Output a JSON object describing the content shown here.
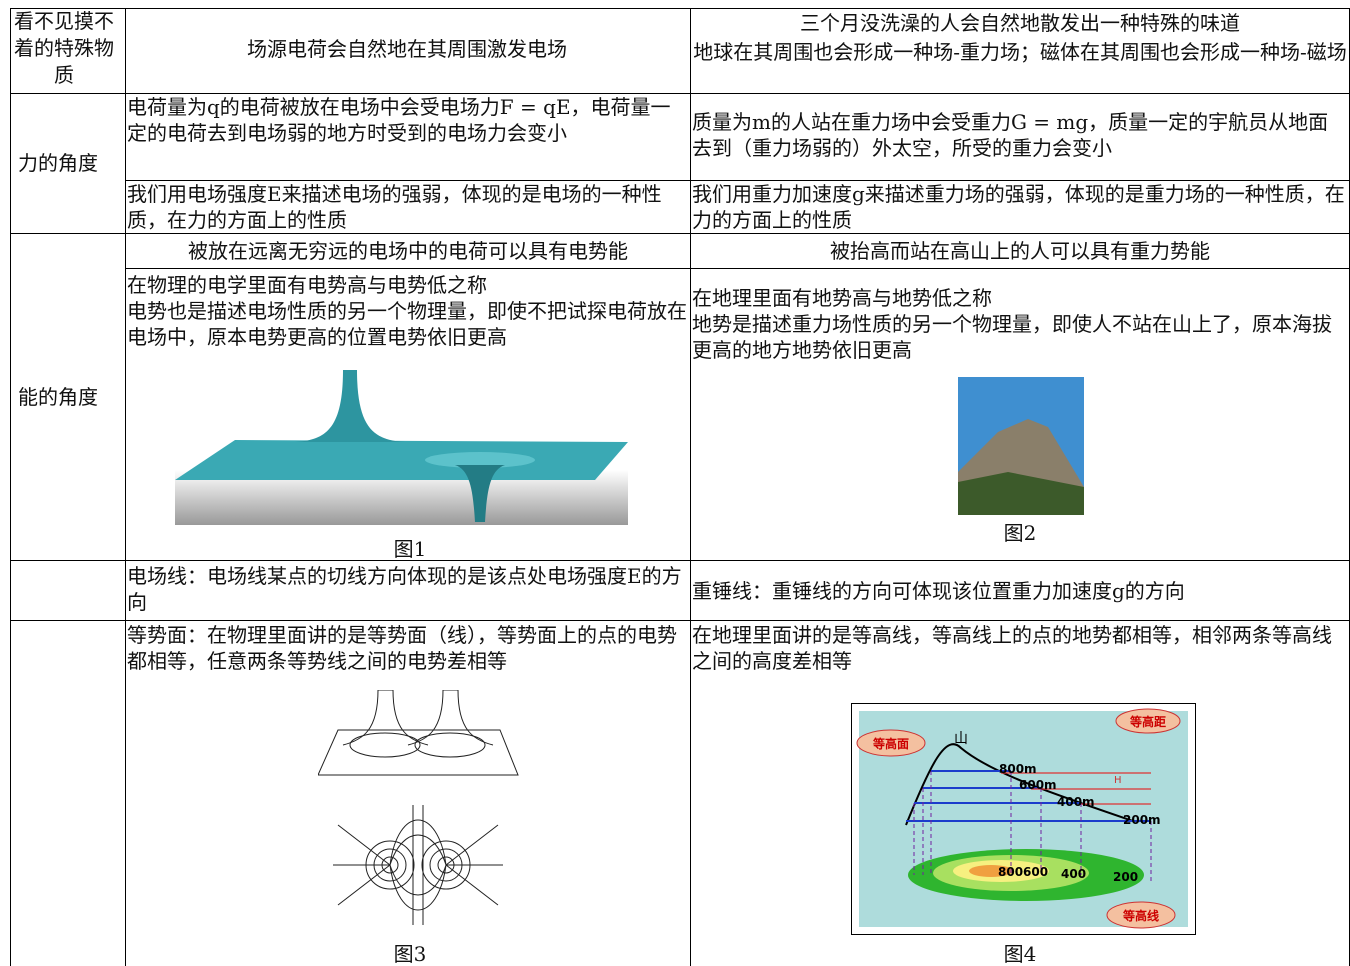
{
  "header": {
    "col1": "看不见摸不着的特殊物质",
    "col2": "场源电荷会自然地在其周围激发电场",
    "col3": [
      "三个月没洗澡的人会自然地散发出一种特殊的味道",
      "地球在其周围也会形成一种场-重力场；磁体在其周围也会形成一种场-磁场"
    ]
  },
  "force": {
    "label": "力的角度",
    "rows": [
      [
        "电荷量为q的电荷被放在电场中会受电场力F = qE，电荷量一定的电荷去到电场弱的地方时受到的电场力会变小",
        "质量为m的人站在重力场中会受重力G = mg，质量一定的宇航员从地面去到（重力场弱的）外太空，所受的重力会变小"
      ],
      [
        "我们用电场强度E来描述电场的强弱，体现的是电场的一种性质，在力的方面上的性质",
        "我们用重力加速度g来描述重力场的强弱，体现的是重力场的一种性质，在力的方面上的性质"
      ]
    ]
  },
  "energy": {
    "label": "能的角度",
    "rows": [
      [
        "被放在远离无穷远的电场中的电荷可以具有电势能",
        "被抬高而站在高山上的人可以具有重力势能"
      ],
      [
        "在物理的电学里面有电势高与电势低之称\n电势也是描述电场性质的另一个物理量，即使不把试探电荷放在电场中，原本电势更高的位置电势依旧更高",
        "在地理里面有地势高与地势低之称\n 地势是描述重力场性质的另一个物理量，即使人不站在山上了，原本海拔更高的地方地势依旧更高"
      ]
    ],
    "figures": [
      "图1",
      "图2"
    ]
  },
  "direction": [
    "电场线：电场线某点的切线方向体现的是该点处电场强度E的方向",
    "重锤线：重锤线的方向可体现该位置重力加速度g的方向"
  ],
  "equal": {
    "texts": [
      "等势面：在物理里面讲的是等势面（线），等势面上的点的电势都相等，任意两条等势线之间的电势差相等",
      "在地理里面讲的是等高线，等高线上的点的地势都相等，相邻两条等高线之间的高度差相等"
    ],
    "figures": [
      "图3",
      "图4"
    ],
    "fig4": {
      "surface": "等高面",
      "mountain": "山",
      "interval": "等高距",
      "levels": [
        "800m",
        "600m",
        "400m",
        "200m"
      ],
      "h": "H",
      "rings": [
        "800",
        "600",
        "400",
        "200"
      ],
      "contour": "等高线"
    }
  }
}
